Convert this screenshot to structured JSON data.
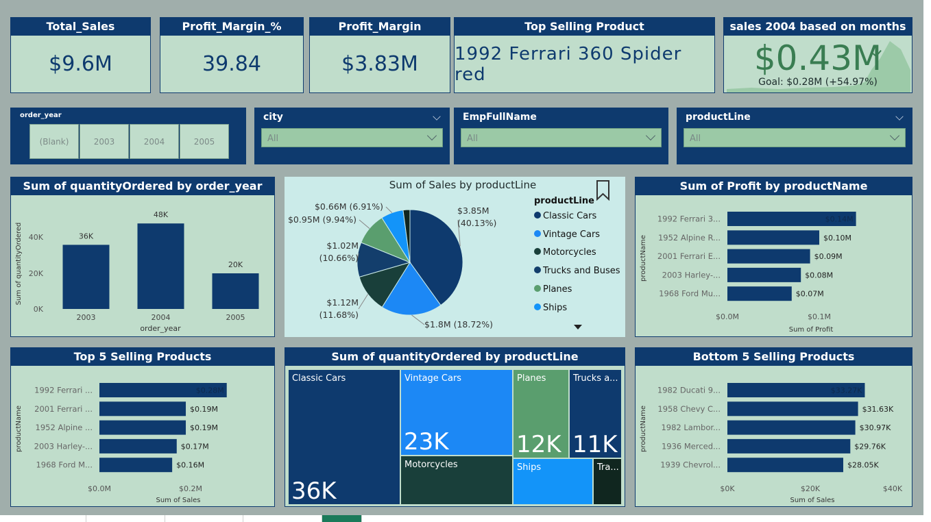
{
  "kpis": {
    "total_sales": {
      "title": "Total_Sales",
      "value": "$9.6M"
    },
    "profit_margin_pct": {
      "title": "Profit_Margin_%",
      "value": "39.84"
    },
    "profit_margin": {
      "title": "Profit_Margin",
      "value": "$3.83M"
    },
    "top_product": {
      "title": "Top Selling Product",
      "value": "1992 Ferrari 360 Spider red"
    },
    "sales_2004": {
      "title": "sales 2004 based on months",
      "value": "$0.43M",
      "goal": "Goal: $0.28M (+54.97%)"
    }
  },
  "slicers": {
    "order_year": {
      "title": "order_year",
      "options": [
        "(Blank)",
        "2003",
        "2004",
        "2005"
      ]
    },
    "city": {
      "title": "city",
      "value": "All"
    },
    "employee": {
      "title": "EmpFullName",
      "value": "All"
    },
    "product_line": {
      "title": "productLine",
      "value": "All"
    }
  },
  "colors": {
    "navy": "#0e3a6e",
    "blue": "#1c88f5",
    "darkgreen": "#193f3a",
    "green": "#5a9e6e",
    "lightblue": "#1394f9",
    "card": "#c0ddcb",
    "pie_bg": "#cbebe9"
  },
  "charts": {
    "qty_by_year": {
      "title": "Sum of quantityOrdered by order_year",
      "ylabel": "Sum of quantityOrdered",
      "xlabel": "order_year",
      "yticks": [
        "40K",
        "20K",
        "0K"
      ]
    },
    "sales_by_line": {
      "title": "Sum of Sales by productLine",
      "legend_title": "productLine"
    },
    "profit_by_product": {
      "title": "Sum of Profit by productName",
      "ylabel": "productName",
      "xlabel": "Sum of Profit",
      "xticks": [
        "$0.0M",
        "$0.1M"
      ]
    },
    "top5": {
      "title": "Top 5 Selling Products",
      "ylabel": "productName",
      "xlabel": "Sum of Sales",
      "xticks": [
        "$0.0M",
        "$0.2M"
      ]
    },
    "treemap": {
      "title": "Sum of quantityOrdered by productLine"
    },
    "bottom5": {
      "title": "Bottom 5 Selling Products",
      "ylabel": "productName",
      "xlabel": "Sum of Sales",
      "xticks": [
        "$0K",
        "$20K",
        "$40K"
      ]
    }
  },
  "chart_data": [
    {
      "type": "bar",
      "title": "Sum of quantityOrdered by order_year",
      "categories": [
        "2003",
        "2004",
        "2005"
      ],
      "values": [
        36000,
        48000,
        20000
      ],
      "data_labels": [
        "36K",
        "48K",
        "20K"
      ],
      "xlabel": "order_year",
      "ylabel": "Sum of quantityOrdered",
      "ylim": [
        0,
        50000
      ],
      "grid": false
    },
    {
      "type": "pie",
      "title": "Sum of Sales by productLine",
      "legend": "right",
      "slices": [
        {
          "name": "Classic Cars",
          "value": 3.85,
          "label": "$3.85M (40.13%)",
          "color": "#0e3a6e"
        },
        {
          "name": "Vintage Cars",
          "value": 1.8,
          "label": "$1.8M (18.72%)",
          "color": "#1c88f5"
        },
        {
          "name": "Motorcycles",
          "value": 1.12,
          "label": "$1.12M (11.68%)",
          "color": "#193f3a"
        },
        {
          "name": "Trucks and Buses",
          "value": 1.02,
          "label": "$1.02M (10.66%)",
          "color": "#133e6c"
        },
        {
          "name": "Planes",
          "value": 0.95,
          "label": "$0.95M (9.94%)",
          "color": "#5a9e6e"
        },
        {
          "name": "Ships",
          "value": 0.66,
          "label": "$0.66M (6.91%)",
          "color": "#1394f9"
        },
        {
          "name": "Trains",
          "value": 0.2,
          "label": "",
          "color": "#10261f"
        }
      ]
    },
    {
      "type": "bar",
      "title": "Sum of Profit by productName",
      "categories": [
        "1992 Ferrari 3...",
        "1952 Alpine R...",
        "2001 Ferrari E...",
        "2003 Harley-...",
        "1968 Ford Mu..."
      ],
      "values": [
        0.14,
        0.1,
        0.09,
        0.08,
        0.07
      ],
      "data_labels": [
        "$0.14M",
        "$0.10M",
        "$0.09M",
        "$0.08M",
        "$0.07M"
      ],
      "xlabel": "Sum of Profit",
      "ylabel": "productName",
      "xlim": [
        0,
        0.15
      ]
    },
    {
      "type": "bar",
      "title": "Top 5 Selling Products",
      "categories": [
        "1992 Ferrari ...",
        "2001 Ferrari ...",
        "1952 Alpine ...",
        "2003 Harley-...",
        "1968 Ford M..."
      ],
      "values": [
        0.28,
        0.19,
        0.19,
        0.17,
        0.16
      ],
      "data_labels": [
        "$0.28M",
        "$0.19M",
        "$0.19M",
        "$0.17M",
        "$0.16M"
      ],
      "xlabel": "Sum of Sales",
      "ylabel": "productName",
      "xlim": [
        0,
        0.3
      ]
    },
    {
      "type": "treemap",
      "title": "Sum of quantityOrdered by productLine",
      "items": [
        {
          "name": "Classic Cars",
          "value": 36000,
          "label": "Classic Cars",
          "value_label": "36K",
          "color": "#0e3a6e"
        },
        {
          "name": "Vintage Cars",
          "value": 23000,
          "label": "Vintage Cars",
          "value_label": "23K",
          "color": "#1c88f5"
        },
        {
          "name": "Motorcycles",
          "label": "Motorcycles",
          "color": "#193f3a"
        },
        {
          "name": "Planes",
          "value": 12000,
          "label": "Planes",
          "value_label": "12K",
          "color": "#5a9e6e"
        },
        {
          "name": "Trucks and Buses",
          "value": 11000,
          "label": "Trucks a...",
          "value_label": "11K",
          "color": "#0e3a6e"
        },
        {
          "name": "Ships",
          "label": "Ships",
          "color": "#1394f9"
        },
        {
          "name": "Trains",
          "label": "Tra...",
          "color": "#10261f"
        }
      ]
    },
    {
      "type": "bar",
      "title": "Bottom 5 Selling Products",
      "categories": [
        "1982 Ducati 9...",
        "1958 Chevy C...",
        "1982 Lambor...",
        "1936 Merced...",
        "1939 Chevrol..."
      ],
      "values": [
        33270,
        31630,
        30970,
        29760,
        28050
      ],
      "data_labels": [
        "$33.27K",
        "$31.63K",
        "$30.97K",
        "$29.76K",
        "$28.05K"
      ],
      "xlabel": "Sum of Sales",
      "ylabel": "productName",
      "xlim": [
        0,
        40000
      ]
    }
  ]
}
